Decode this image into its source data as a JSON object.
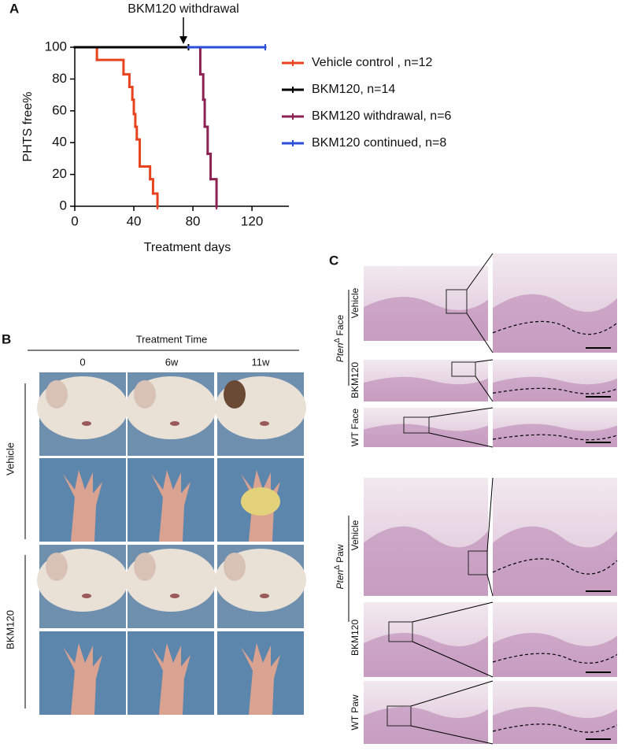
{
  "chart_data": {
    "type": "line",
    "step": true,
    "annotation": "BKM120 withdrawal",
    "x_label": "Treatment days",
    "y_label": "PHTS free%",
    "xlim": [
      0,
      145
    ],
    "ylim": [
      0,
      100
    ],
    "xticks": [
      0,
      40,
      80,
      120
    ],
    "yticks": [
      0,
      20,
      40,
      60,
      80,
      100
    ],
    "legend": "right",
    "series": [
      {
        "name": "Vehicle control , n=12",
        "color": "#e8431f",
        "x": [
          0,
          15,
          33,
          37,
          39,
          40,
          41,
          42,
          44,
          51,
          53,
          56
        ],
        "values": [
          100,
          92,
          83,
          75,
          67,
          58,
          50,
          42,
          25,
          17,
          8,
          0
        ]
      },
      {
        "name": "BKM120, n=14",
        "color": "#000000",
        "x": [
          0,
          77
        ],
        "values": [
          100,
          100
        ]
      },
      {
        "name": "BKM120  withdrawal, n=6",
        "color": "#8b2252",
        "x": [
          77,
          85,
          87,
          88,
          90,
          92,
          96
        ],
        "values": [
          100,
          83,
          67,
          50,
          33,
          17,
          0
        ]
      },
      {
        "name": "BKM120  continued, n=8",
        "color": "#2b4fd8",
        "x": [
          77,
          129
        ],
        "values": [
          100,
          100
        ]
      }
    ]
  },
  "figure": {
    "panels": [
      "A",
      "B",
      "C"
    ],
    "panel_b": {
      "header": "Treatment Time",
      "columns": [
        "0",
        "6w",
        "11w"
      ],
      "rows": [
        "Vehicle",
        "BKM120"
      ]
    },
    "panel_c": {
      "groups": [
        {
          "gene": "Pten",
          "superscript": "Δ",
          "text": "Face"
        },
        {
          "gene": "Pten",
          "superscript": "Δ",
          "text": "Paw"
        }
      ],
      "rows": [
        "Vehicle",
        "BKM120",
        "WT Face",
        "Vehicle",
        "BKM120",
        "WT Paw"
      ]
    }
  }
}
